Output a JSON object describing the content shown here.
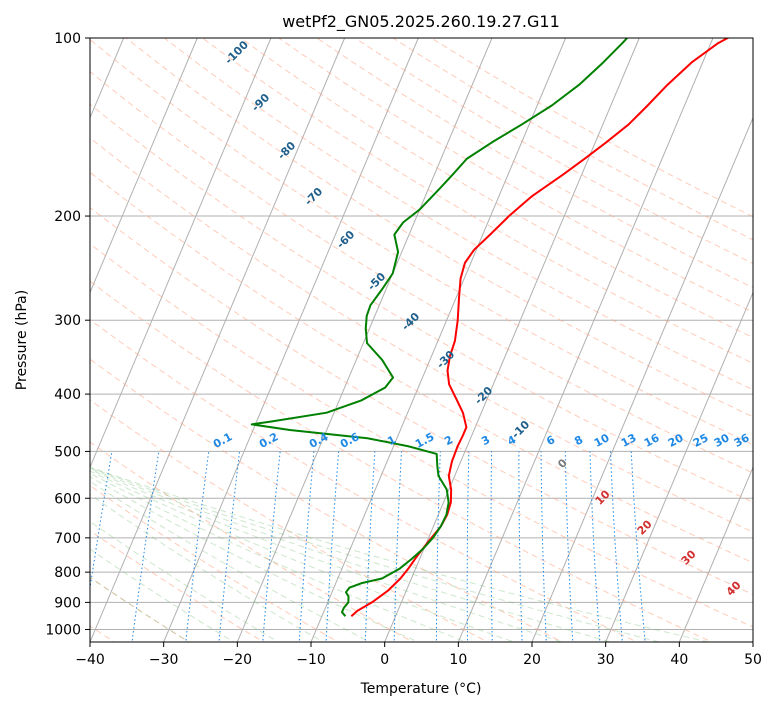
{
  "chart_data": {
    "type": "line",
    "title": "wetPf2_GN05.2025.260.19.27.G11",
    "xlabel": "Temperature (°C)",
    "ylabel": "Pressure (hPa)",
    "xlim": [
      -40,
      50
    ],
    "ylim": [
      1050,
      100
    ],
    "y_scale": "log",
    "x_ticks": [
      -40,
      -30,
      -20,
      -10,
      0,
      10,
      20,
      30,
      40,
      50
    ],
    "y_ticks": [
      100,
      200,
      300,
      400,
      500,
      600,
      700,
      800,
      900,
      1000
    ],
    "skew": "skew-T",
    "grid": true,
    "series": [
      {
        "color": "#ff0000",
        "points": [
          [
            -6,
            950
          ],
          [
            -5.5,
            930
          ],
          [
            -4,
            900
          ],
          [
            -2.5,
            860
          ],
          [
            -1.5,
            820
          ],
          [
            -1,
            790
          ],
          [
            -0.5,
            750
          ],
          [
            0.2,
            710
          ],
          [
            1,
            670
          ],
          [
            1.2,
            640
          ],
          [
            1,
            610
          ],
          [
            0.3,
            580
          ],
          [
            -0.8,
            550
          ],
          [
            -1.2,
            520
          ],
          [
            -1.3,
            490
          ],
          [
            -1.2,
            470
          ],
          [
            -1.2,
            455
          ],
          [
            -2.5,
            430
          ],
          [
            -4,
            410
          ],
          [
            -6,
            385
          ],
          [
            -7,
            365
          ],
          [
            -7.5,
            345
          ],
          [
            -7.7,
            325
          ],
          [
            -8.5,
            300
          ],
          [
            -9.6,
            275
          ],
          [
            -10.5,
            255
          ],
          [
            -10.8,
            240
          ],
          [
            -10.3,
            228
          ],
          [
            -9,
            215
          ],
          [
            -7.5,
            200
          ],
          [
            -5.5,
            185
          ],
          [
            -2.5,
            170
          ],
          [
            -0.5,
            160
          ],
          [
            1.5,
            150
          ],
          [
            3.5,
            140
          ],
          [
            5,
            130
          ],
          [
            6.5,
            120
          ],
          [
            8.5,
            110
          ],
          [
            11,
            102
          ],
          [
            13,
            98
          ]
        ]
      },
      {
        "color": "#008000",
        "points": [
          [
            -6.8,
            950
          ],
          [
            -7.5,
            935
          ],
          [
            -7.5,
            920
          ],
          [
            -7.2,
            900
          ],
          [
            -7.5,
            880
          ],
          [
            -8.1,
            865
          ],
          [
            -7.9,
            850
          ],
          [
            -6.5,
            835
          ],
          [
            -4,
            820
          ],
          [
            -2.2,
            790
          ],
          [
            -1.1,
            760
          ],
          [
            -0.1,
            730
          ],
          [
            0.6,
            700
          ],
          [
            1,
            670
          ],
          [
            1.1,
            640
          ],
          [
            0.7,
            610
          ],
          [
            -0.3,
            580
          ],
          [
            -2.2,
            550
          ],
          [
            -2.9,
            530
          ],
          [
            -3.7,
            505
          ],
          [
            -8,
            490
          ],
          [
            -14,
            475
          ],
          [
            -25,
            460
          ],
          [
            -30.5,
            450
          ],
          [
            -28,
            445
          ],
          [
            -21,
            430
          ],
          [
            -17,
            410
          ],
          [
            -14.5,
            390
          ],
          [
            -14,
            375
          ],
          [
            -16.5,
            350
          ],
          [
            -19.5,
            328
          ],
          [
            -20.5,
            310
          ],
          [
            -21.1,
            295
          ],
          [
            -21.2,
            283
          ],
          [
            -20.5,
            265
          ],
          [
            -20,
            250
          ],
          [
            -20.5,
            230
          ],
          [
            -22,
            215
          ],
          [
            -21.5,
            205
          ],
          [
            -20,
            195
          ],
          [
            -18.5,
            180
          ],
          [
            -17.5,
            170
          ],
          [
            -16.5,
            160
          ],
          [
            -14,
            150
          ],
          [
            -11,
            140
          ],
          [
            -8,
            130
          ],
          [
            -5.5,
            120
          ],
          [
            -3.5,
            110
          ],
          [
            -2,
            102
          ],
          [
            -1.3,
            98
          ]
        ]
      }
    ],
    "dry_adiabat_labels": [
      "-100",
      "-90",
      "-80",
      "-70",
      "-60",
      "-50",
      "-40",
      "-30",
      "-20",
      "-10",
      "0",
      "10",
      "20",
      "30",
      "40"
    ],
    "mixing_ratio_labels": [
      "0.1",
      "0.2",
      "0.4",
      "0.6",
      "1",
      "1.5",
      "2",
      "3",
      "4",
      "6",
      "8",
      "10",
      "13",
      "16",
      "20",
      "25",
      "30",
      "36"
    ]
  },
  "colors": {
    "temperature_line": "#ff0000",
    "dewpoint_line": "#008000",
    "isotherm": "#b0b0b0",
    "dry_adiabat": "#ffa080",
    "moist_adiabat": "#70b870",
    "mixing_ratio": "#1e88e5",
    "dry_adiabat_label_cold": "#1f5f8b",
    "dry_adiabat_label_warm": "#d32f2f",
    "zero_label": "#7a7a7a"
  }
}
